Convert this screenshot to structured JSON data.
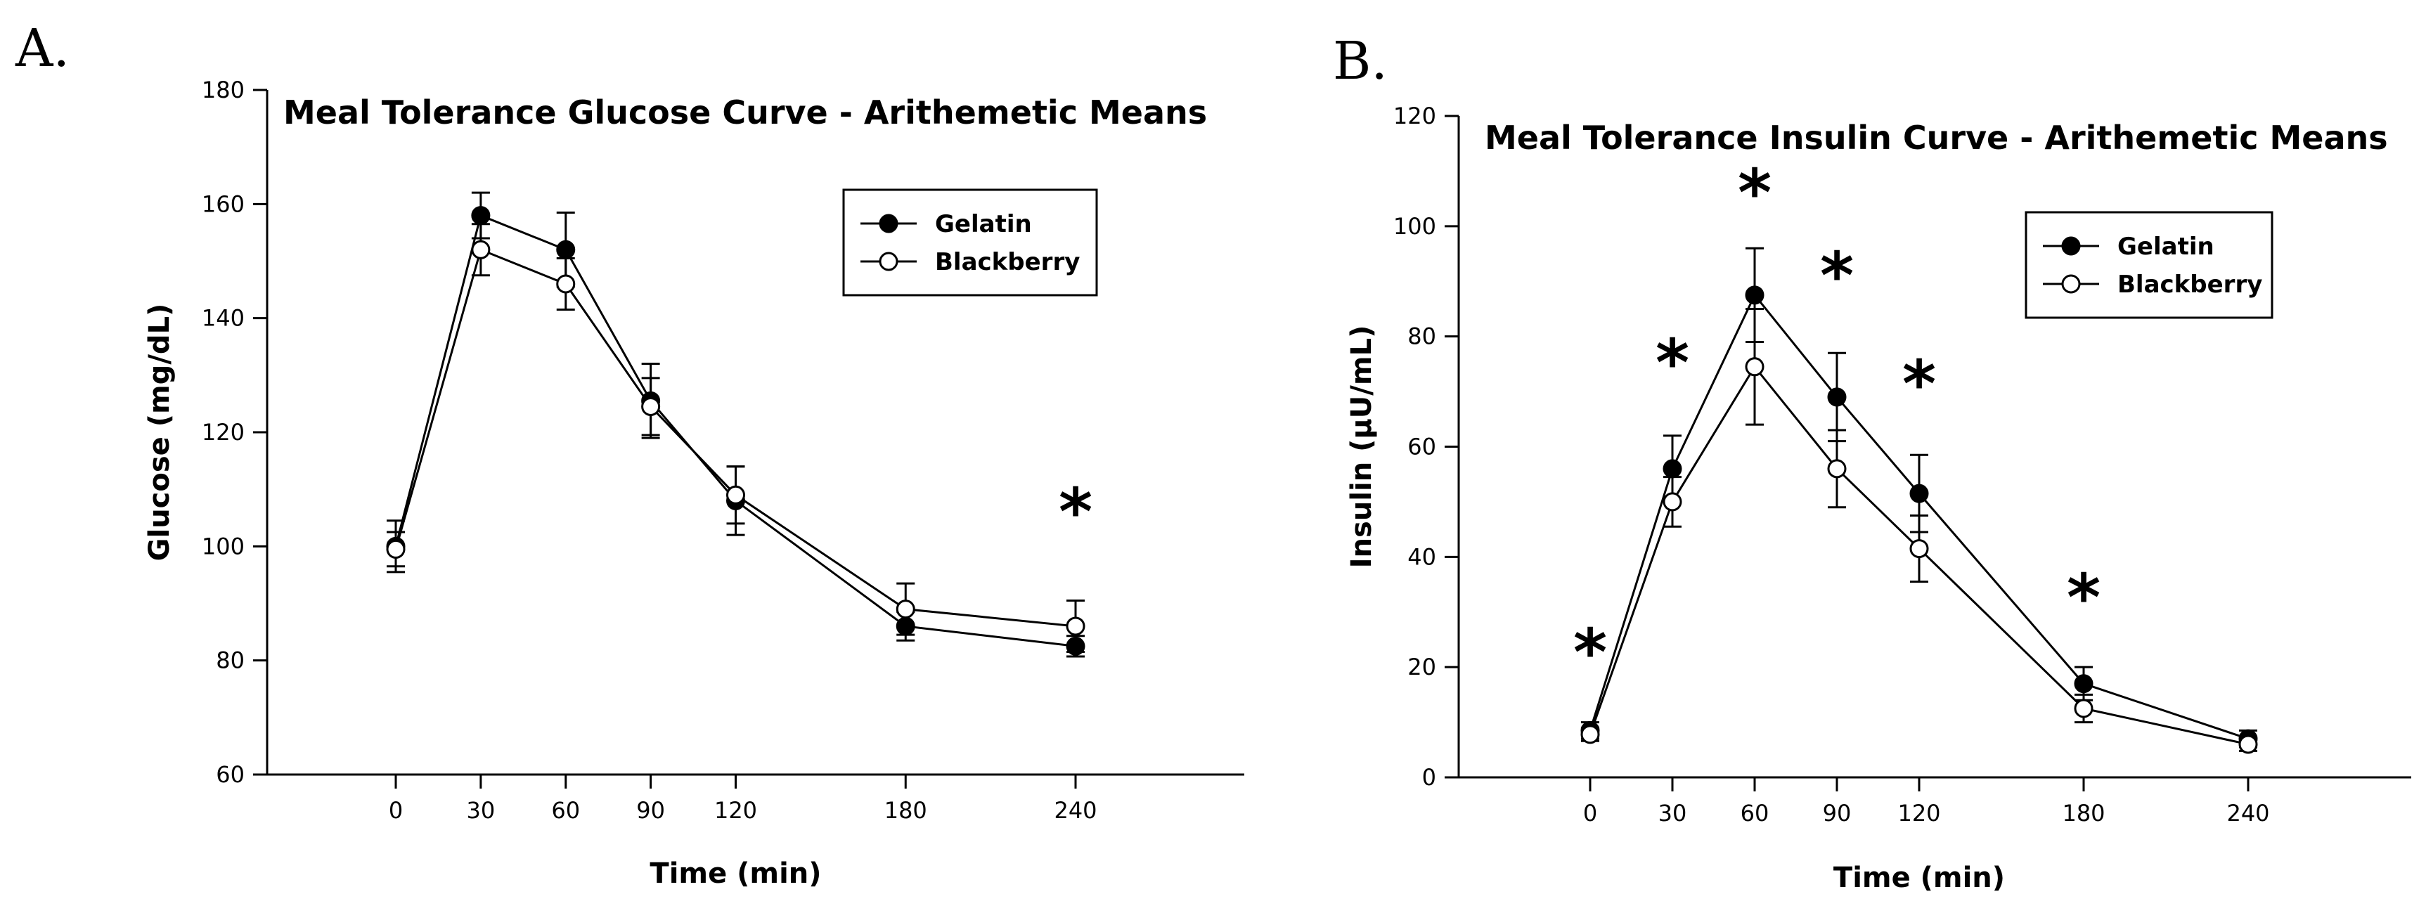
{
  "figure": {
    "panel_letters": [
      "A.",
      "B."
    ]
  },
  "chart_data": [
    {
      "type": "line",
      "title": "Meal Tolerance Glucose Curve - Arithemetic Means",
      "xlabel": "Time (min)",
      "ylabel": "Glucose (mg/dL)",
      "x": [
        0,
        30,
        60,
        90,
        120,
        180,
        240
      ],
      "x_ticks": [
        0,
        30,
        60,
        90,
        120,
        180,
        240
      ],
      "y_ticks": [
        60,
        80,
        100,
        120,
        140,
        160,
        180
      ],
      "ylim": [
        60,
        180
      ],
      "series": [
        {
          "name": "Gelatin",
          "marker": "filled-circle",
          "values": [
            100,
            158,
            152,
            125.5,
            108,
            86,
            82.5
          ],
          "errors": [
            4.5,
            4,
            6.5,
            6.5,
            6,
            2.5,
            1.8
          ]
        },
        {
          "name": "Blackberry",
          "marker": "open-circle",
          "values": [
            99.5,
            152,
            146,
            124.5,
            109,
            89,
            86
          ],
          "errors": [
            3,
            4.5,
            4.5,
            5,
            5,
            4.5,
            4.5
          ]
        }
      ],
      "significance_marks": [
        {
          "x": 240,
          "label": "*"
        }
      ],
      "legend": {
        "position": "upper-right"
      }
    },
    {
      "type": "line",
      "title": "Meal Tolerance Insulin Curve - Arithemetic Means",
      "xlabel": "Time (min)",
      "ylabel": "Insulin (µU/mL)",
      "x": [
        0,
        30,
        60,
        90,
        120,
        180,
        240
      ],
      "x_ticks": [
        0,
        30,
        60,
        90,
        120,
        180,
        240
      ],
      "y_ticks": [
        0,
        20,
        40,
        60,
        80,
        100,
        120
      ],
      "ylim": [
        0,
        120
      ],
      "series": [
        {
          "name": "Gelatin",
          "marker": "filled-circle",
          "values": [
            8.5,
            56,
            87.5,
            69,
            51.5,
            17,
            7
          ],
          "errors": [
            1.5,
            6,
            8.5,
            8,
            7,
            3,
            1.5
          ]
        },
        {
          "name": "Blackberry",
          "marker": "open-circle",
          "values": [
            7.8,
            50,
            74.5,
            56,
            41.5,
            12.5,
            6
          ],
          "errors": [
            1.2,
            4.5,
            10.5,
            7,
            6,
            2.5,
            1.2
          ]
        }
      ],
      "significance_marks": [
        {
          "x": 0,
          "label": "*"
        },
        {
          "x": 30,
          "label": "*"
        },
        {
          "x": 60,
          "label": "*"
        },
        {
          "x": 90,
          "label": "*"
        },
        {
          "x": 120,
          "label": "*"
        },
        {
          "x": 180,
          "label": "*"
        }
      ],
      "legend": {
        "position": "upper-right"
      }
    }
  ]
}
